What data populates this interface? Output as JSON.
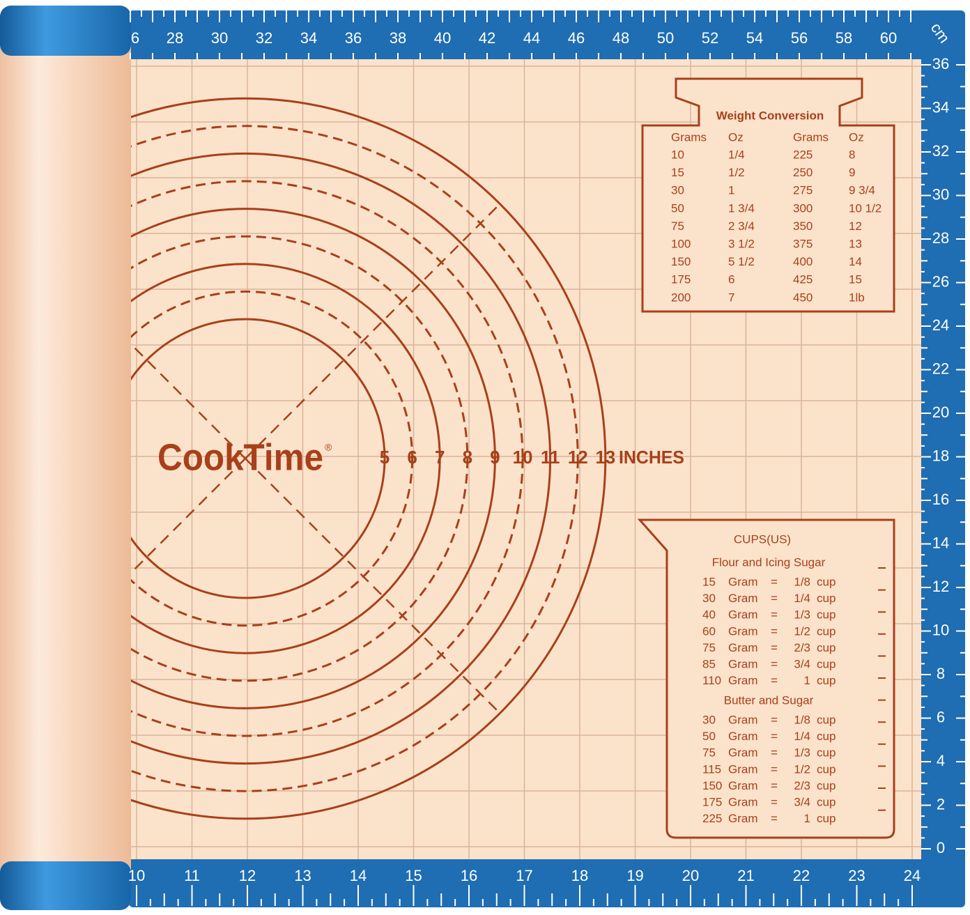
{
  "ruler_top": {
    "unit": "cm",
    "labels": [
      6,
      28,
      30,
      32,
      34,
      36,
      38,
      40,
      42,
      44,
      46,
      48,
      50,
      52,
      54,
      56,
      58,
      60
    ]
  },
  "ruler_right": {
    "labels": [
      36,
      34,
      32,
      30,
      28,
      26,
      24,
      22,
      20,
      18,
      16,
      14,
      12,
      10,
      8,
      6,
      4,
      2,
      0
    ]
  },
  "ruler_bottom": {
    "labels": [
      10,
      11,
      12,
      13,
      14,
      15,
      16,
      17,
      18,
      19,
      20,
      21,
      22,
      23,
      24
    ]
  },
  "brand": {
    "name": "CookTime",
    "mark": "®"
  },
  "circles": {
    "labels": [
      5,
      6,
      7,
      8,
      9,
      10,
      11,
      12,
      13
    ],
    "unit": "INCHES"
  },
  "weight_conversion": {
    "title": "Weight Conversion",
    "headers": [
      "Grams",
      "Oz",
      "Grams",
      "Oz"
    ],
    "rows": [
      [
        10,
        "1/4",
        225,
        8
      ],
      [
        15,
        "1/2",
        250,
        9
      ],
      [
        30,
        1,
        275,
        "9 3/4"
      ],
      [
        50,
        "1 3/4",
        300,
        "10 1/2"
      ],
      [
        75,
        "2 3/4",
        350,
        12
      ],
      [
        100,
        "3 1/2",
        375,
        13
      ],
      [
        150,
        "5 1/2",
        400,
        14
      ],
      [
        175,
        6,
        425,
        15
      ],
      [
        200,
        7,
        450,
        "1lb"
      ]
    ]
  },
  "cups": {
    "title": "CUPS(US)",
    "sections": [
      {
        "title": "Flour and Icing Sugar",
        "rows": [
          [
            15,
            "Gram",
            "=",
            "1/8",
            "cup"
          ],
          [
            30,
            "Gram",
            "=",
            "1/4",
            "cup"
          ],
          [
            40,
            "Gram",
            "=",
            "1/3",
            "cup"
          ],
          [
            60,
            "Gram",
            "=",
            "1/2",
            "cup"
          ],
          [
            75,
            "Gram",
            "=",
            "2/3",
            "cup"
          ],
          [
            85,
            "Gram",
            "=",
            "3/4",
            "cup"
          ],
          [
            110,
            "Gram",
            "=",
            1,
            "cup"
          ]
        ]
      },
      {
        "title": "Butter and Sugar",
        "rows": [
          [
            30,
            "Gram",
            "=",
            "1/8",
            "cup"
          ],
          [
            50,
            "Gram",
            "=",
            "1/4",
            "cup"
          ],
          [
            75,
            "Gram",
            "=",
            "1/3",
            "cup"
          ],
          [
            115,
            "Gram",
            "=",
            "1/2",
            "cup"
          ],
          [
            150,
            "Gram",
            "=",
            "2/3",
            "cup"
          ],
          [
            175,
            "Gram",
            "=",
            "3/4",
            "cup"
          ],
          [
            225,
            "Gram",
            "=",
            1,
            "cup"
          ]
        ]
      }
    ]
  }
}
